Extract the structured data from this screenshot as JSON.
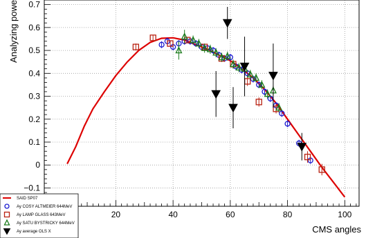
{
  "chart_data": {
    "type": "scatter",
    "xlabel": "CMS angles",
    "ylabel": "Analyzing powers",
    "xlim": [
      -5,
      105
    ],
    "ylim": [
      -0.18,
      0.72
    ],
    "x_ticks": [
      20,
      40,
      60,
      80,
      100
    ],
    "y_ticks": [
      -0.1,
      0,
      0.1,
      0.2,
      0.3,
      0.4,
      0.5,
      0.6,
      0.7
    ],
    "x_tick_labels": [
      "20",
      "40",
      "60",
      "80",
      "100"
    ],
    "y_tick_labels": [
      "−0.1",
      "0",
      "0.1",
      "0.2",
      "0.3",
      "0.4",
      "0.5",
      "0.6",
      "0.7"
    ],
    "grid": true,
    "legend_position": "bottom-left",
    "series": [
      {
        "name": "SAID SP07",
        "kind": "line",
        "color": "#dd0000",
        "x": [
          3,
          6,
          9,
          12,
          16,
          20,
          24,
          28,
          32,
          36,
          40,
          44,
          48,
          52,
          56,
          60,
          64,
          68,
          72,
          76,
          80,
          84,
          88,
          92,
          96,
          100
        ],
        "y": [
          0.005,
          0.08,
          0.17,
          0.245,
          0.32,
          0.39,
          0.45,
          0.5,
          0.535,
          0.553,
          0.555,
          0.545,
          0.525,
          0.505,
          0.48,
          0.455,
          0.42,
          0.38,
          0.33,
          0.27,
          0.2,
          0.13,
          0.06,
          -0.01,
          -0.075,
          -0.14
        ]
      },
      {
        "name": "Ay COSY ALTMEIER 644MeV",
        "kind": "circle",
        "color": "#1a1ad0",
        "x": [
          36,
          38,
          40,
          42,
          44,
          46,
          48,
          50,
          52,
          54,
          56,
          58,
          60,
          62,
          64,
          66,
          68,
          70,
          72,
          74,
          76,
          78,
          80,
          84,
          88
        ],
        "y": [
          0.525,
          0.54,
          0.515,
          0.53,
          0.54,
          0.54,
          0.53,
          0.515,
          0.51,
          0.5,
          0.48,
          0.465,
          0.47,
          0.43,
          0.415,
          0.4,
          0.375,
          0.35,
          0.32,
          0.29,
          0.26,
          0.225,
          0.18,
          0.095,
          0.02
        ],
        "err": [
          0.015,
          0.015,
          0.015,
          0.015,
          0.015,
          0.015,
          0.015,
          0.015,
          0.015,
          0.015,
          0.015,
          0.015,
          0.015,
          0.015,
          0.015,
          0.015,
          0.015,
          0.015,
          0.015,
          0.015,
          0.015,
          0.015,
          0.015,
          0.015,
          0.015
        ]
      },
      {
        "name": "Ay LAMP GLASS 643MeV",
        "kind": "square",
        "color": "#b82010",
        "x": [
          27,
          33,
          39,
          45,
          51,
          57,
          61,
          66,
          70,
          76,
          87,
          92
        ],
        "y": [
          0.515,
          0.555,
          0.53,
          0.545,
          0.515,
          0.465,
          0.44,
          0.365,
          0.275,
          0.245,
          0.035,
          -0.02
        ],
        "err": [
          0.015,
          0.012,
          0.012,
          0.012,
          0.012,
          0.015,
          0.015,
          0.02,
          0.02,
          0.02,
          0.025,
          0.025
        ]
      },
      {
        "name": "Ay SATU BYSTRICKY 644MeV",
        "kind": "triangle",
        "color": "#1a7a1a",
        "x": [
          42,
          44,
          47,
          49,
          51,
          53,
          55,
          57,
          59,
          61,
          63,
          65,
          67,
          69,
          71,
          73,
          75,
          77
        ],
        "y": [
          0.5,
          0.56,
          0.545,
          0.53,
          0.51,
          0.505,
          0.49,
          0.47,
          0.475,
          0.44,
          0.425,
          0.42,
          0.395,
          0.38,
          0.35,
          0.31,
          0.325,
          0.25
        ],
        "err": [
          0.04,
          0.03,
          0.02,
          0.02,
          0.02,
          0.02,
          0.02,
          0.02,
          0.02,
          0.02,
          0.02,
          0.02,
          0.02,
          0.02,
          0.02,
          0.02,
          0.02,
          0.02
        ]
      },
      {
        "name": "Ay average OLS X",
        "kind": "triangle-down",
        "color": "#000000",
        "x": [
          55,
          59,
          61,
          65,
          75,
          85
        ],
        "y": [
          0.31,
          0.62,
          0.25,
          0.43,
          0.39,
          0.08
        ],
        "err": [
          0.1,
          0.07,
          0.09,
          0.13,
          0.14,
          0.06
        ]
      }
    ]
  }
}
